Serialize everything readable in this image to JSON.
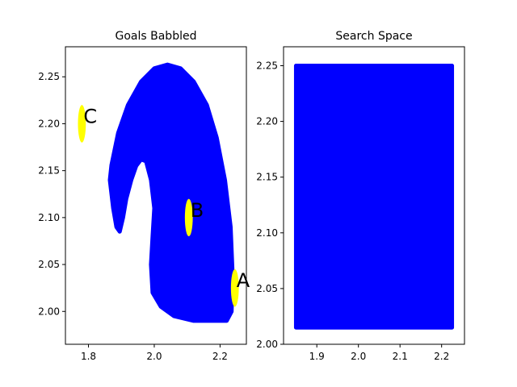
{
  "chart_data": [
    {
      "type": "scatter",
      "title": "Goals Babbled",
      "xlabel": "",
      "ylabel": "",
      "xlim": [
        1.73,
        2.28
      ],
      "ylim": [
        1.965,
        2.282
      ],
      "xticks": [
        1.8,
        2.0,
        2.2
      ],
      "xtick_labels": [
        "1.8",
        "2.0",
        "2.2"
      ],
      "yticks": [
        2.0,
        2.05,
        2.1,
        2.15,
        2.2,
        2.25
      ],
      "ytick_labels": [
        "2.00",
        "2.05",
        "2.10",
        "2.15",
        "2.20",
        "2.25"
      ],
      "grid": false,
      "colors": {
        "points": "#0000ff",
        "goals": "#ffff00"
      },
      "region_outline": [
        [
          1.87,
          2.156
        ],
        [
          1.89,
          2.19
        ],
        [
          1.92,
          2.22
        ],
        [
          1.96,
          2.245
        ],
        [
          2.0,
          2.259
        ],
        [
          2.04,
          2.263
        ],
        [
          2.08,
          2.259
        ],
        [
          2.12,
          2.245
        ],
        [
          2.16,
          2.22
        ],
        [
          2.19,
          2.185
        ],
        [
          2.215,
          2.14
        ],
        [
          2.232,
          2.09
        ],
        [
          2.238,
          2.04
        ],
        [
          2.235,
          2.0
        ],
        [
          2.22,
          1.99
        ],
        [
          2.18,
          1.99
        ],
        [
          2.12,
          1.99
        ],
        [
          2.06,
          1.995
        ],
        [
          2.02,
          2.005
        ],
        [
          1.995,
          2.02
        ],
        [
          1.99,
          2.05
        ],
        [
          1.995,
          2.08
        ],
        [
          2.0,
          2.11
        ],
        [
          1.99,
          2.14
        ],
        [
          1.975,
          2.16
        ],
        [
          1.96,
          2.162
        ],
        [
          1.945,
          2.155
        ],
        [
          1.93,
          2.14
        ],
        [
          1.915,
          2.12
        ],
        [
          1.905,
          2.1
        ],
        [
          1.895,
          2.085
        ],
        [
          1.885,
          2.09
        ],
        [
          1.875,
          2.11
        ],
        [
          1.865,
          2.14
        ]
      ],
      "goals": [
        {
          "label": "A",
          "x": 2.245,
          "y": 2.025,
          "rx": 0.012,
          "ry": 0.02
        },
        {
          "label": "B",
          "x": 2.105,
          "y": 2.1,
          "rx": 0.012,
          "ry": 0.02
        },
        {
          "label": "C",
          "x": 1.78,
          "y": 2.2,
          "rx": 0.012,
          "ry": 0.02
        }
      ]
    },
    {
      "type": "scatter",
      "title": "Search Space",
      "xlabel": "",
      "ylabel": "",
      "xlim": [
        1.82,
        2.255
      ],
      "ylim": [
        2.0,
        2.267
      ],
      "xticks": [
        1.9,
        2.0,
        2.1,
        2.2
      ],
      "xtick_labels": [
        "1.9",
        "2.0",
        "2.1",
        "2.2"
      ],
      "yticks": [
        2.0,
        2.05,
        2.1,
        2.15,
        2.2,
        2.25
      ],
      "ytick_labels": [
        "2.00",
        "2.05",
        "2.10",
        "2.15",
        "2.20",
        "2.25"
      ],
      "grid": false,
      "colors": {
        "points": "#0000ff"
      },
      "region": {
        "x": [
          1.85,
          2.225
        ],
        "y": [
          2.015,
          2.25
        ]
      }
    }
  ]
}
